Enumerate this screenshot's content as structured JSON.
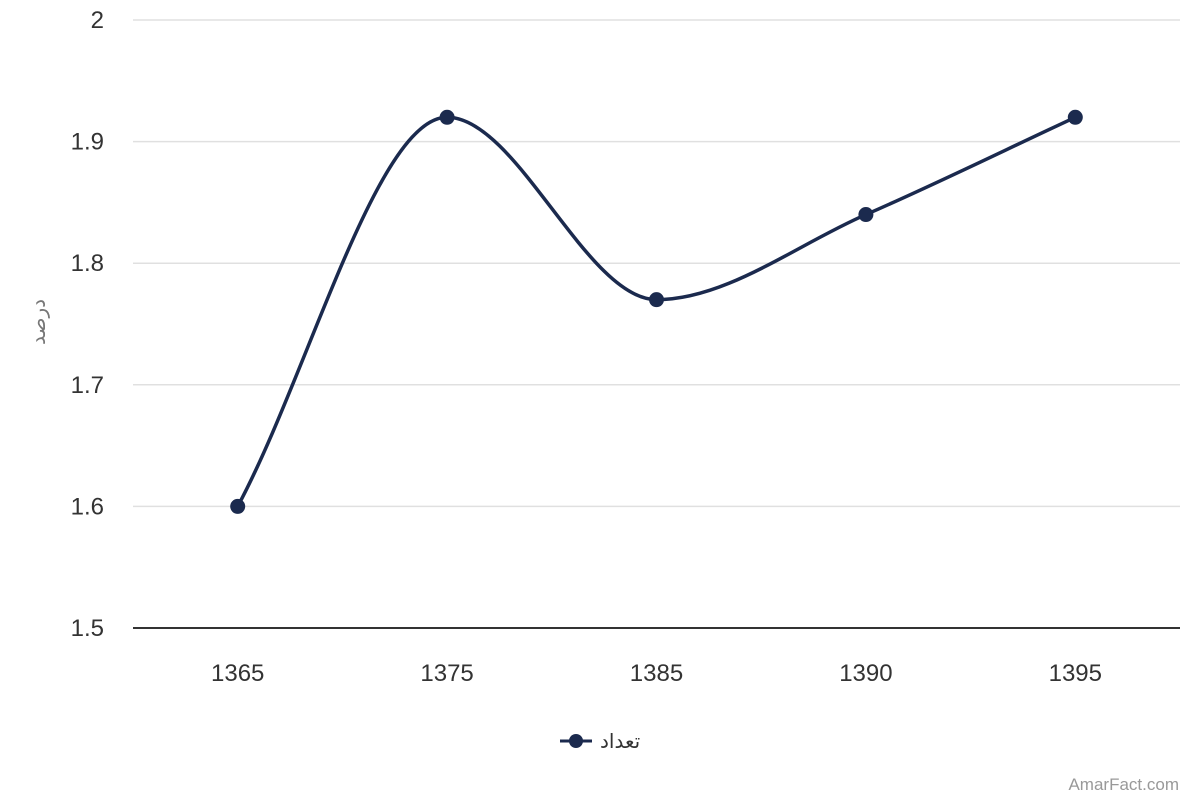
{
  "chart_data": {
    "type": "line",
    "smooth": true,
    "x": [
      "1365",
      "1375",
      "1385",
      "1390",
      "1395"
    ],
    "series": [
      {
        "name": "تعداد",
        "values": [
          1.6,
          1.92,
          1.77,
          1.84,
          1.92
        ],
        "color": "#1b2a4e"
      }
    ],
    "ylabel": "درصد",
    "ylim": [
      1.5,
      2
    ],
    "yticks": [
      "1.5",
      "1.6",
      "1.7",
      "1.8",
      "1.9",
      "2"
    ],
    "grid": true,
    "legend_position": "bottom-center"
  },
  "credit": "AmarFact.com",
  "colors": {
    "series": "#1b2a4e",
    "grid": "#e0e0e0",
    "axis": "#333333"
  }
}
